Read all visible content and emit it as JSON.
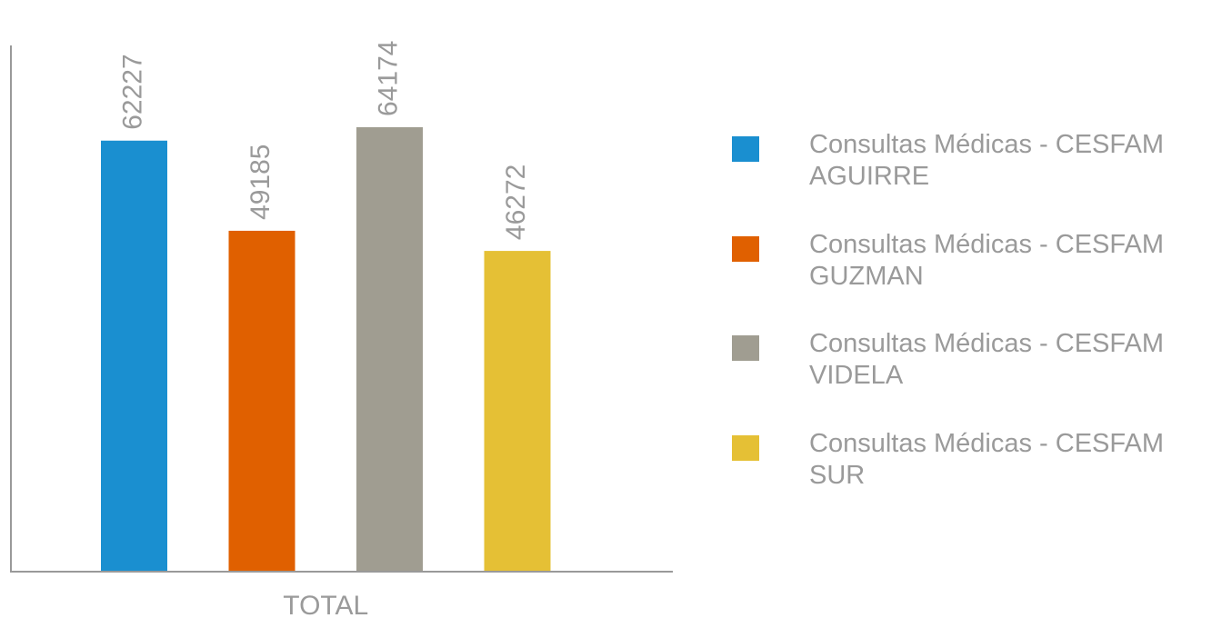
{
  "chart_data": {
    "type": "bar",
    "categories": [
      "TOTAL"
    ],
    "series": [
      {
        "name": "Consultas Médicas - CESFAM AGUIRRE",
        "color": "#1a8fd0",
        "values": [
          62227
        ]
      },
      {
        "name": "Consultas Médicas - CESFAM GUZMAN",
        "color": "#e06000",
        "values": [
          49185
        ]
      },
      {
        "name": "Consultas Médicas - CESFAM VIDELA",
        "color": "#a09d91",
        "values": [
          64174
        ]
      },
      {
        "name": "Consultas Médicas - CESFAM SUR",
        "color": "#e5c035",
        "values": [
          46272
        ]
      }
    ],
    "ylim": [
      0,
      76000
    ],
    "legend": "right"
  }
}
